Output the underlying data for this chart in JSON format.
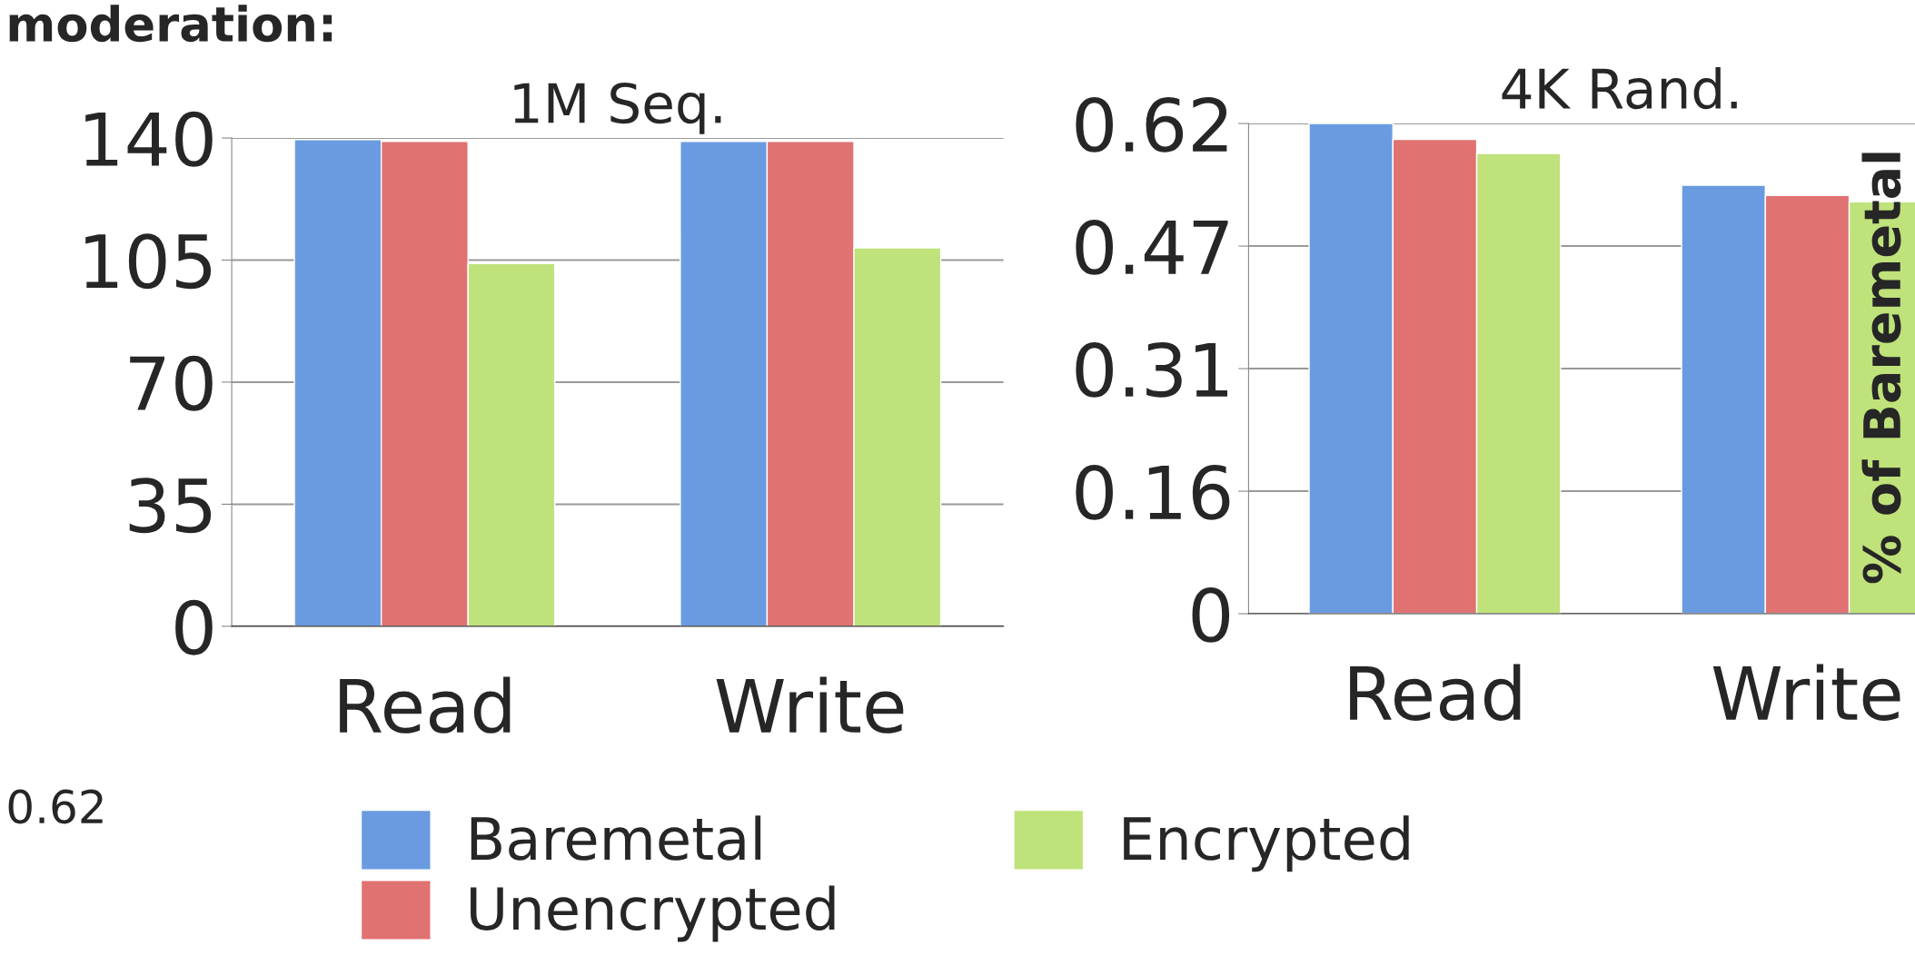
{
  "chart_data": [
    {
      "type": "bar",
      "title": "1M Seq.",
      "categories": [
        "Read",
        "Write"
      ],
      "series": [
        {
          "name": "Baremetal",
          "color": "#6a9be0",
          "values": [
            139.5,
            139
          ]
        },
        {
          "name": "Unencrypted",
          "color": "#e07272",
          "values": [
            139,
            139
          ]
        },
        {
          "name": "Encrypted",
          "color": "#bfe27a",
          "values": [
            104,
            108.5
          ]
        }
      ],
      "ylim": [
        0,
        140
      ],
      "yticks": [
        0,
        35,
        70,
        105,
        140
      ],
      "grid": "y",
      "legend": "bottom",
      "annotations": [
        "moderation:",
        "0.62"
      ]
    },
    {
      "type": "bar",
      "title": "4K Rand.",
      "categories": [
        "Read",
        "Write"
      ],
      "series": [
        {
          "color": "#6a9be0",
          "values": [
            0.62,
            0.542
          ]
        },
        {
          "color": "#e07272",
          "values": [
            0.6,
            0.529
          ]
        },
        {
          "color": "#bfe27a",
          "values": [
            0.582,
            0.521
          ]
        }
      ],
      "ylim": [
        0,
        0.62
      ],
      "yticks": [
        0,
        {
          "value": 0.155,
          "label": "0.16"
        },
        0.31,
        {
          "value": 0.465,
          "label": "0.47"
        },
        0.62
      ],
      "grid": "y",
      "annotations": [
        "% of Baremetal"
      ]
    }
  ]
}
